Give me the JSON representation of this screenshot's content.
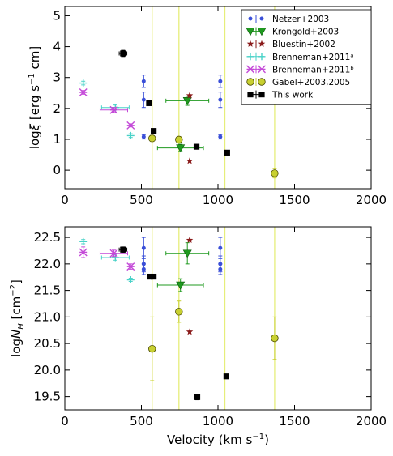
{
  "chart_data": [
    {
      "type": "scatter",
      "ylabel_parts": {
        "pre": "log",
        "symbol": "ξ",
        "post": " [erg s",
        "exp": "−1",
        "post2": " cm]"
      },
      "xlim": [
        0,
        2000
      ],
      "ylim": [
        -0.6,
        5.3
      ],
      "xticks": [
        0,
        500,
        1000,
        1500,
        2000
      ],
      "yticks": [
        0,
        1,
        2,
        3,
        4,
        5
      ],
      "vlines": [
        570,
        745,
        1045,
        1370
      ],
      "legend": {
        "placement": "top-right"
      },
      "series": [
        {
          "name": "Netzer+2003",
          "key": "netzer",
          "color": "#3a4fd8",
          "marker": "dot",
          "points": [
            {
              "x": 515,
              "y": 2.88,
              "yerr": 0.2
            },
            {
              "x": 515,
              "y": 2.28,
              "yerr": 0.25
            },
            {
              "x": 515,
              "y": 1.08,
              "yerr": 0.07
            },
            {
              "x": 1015,
              "y": 2.88,
              "yerr": 0.2
            },
            {
              "x": 1015,
              "y": 2.28,
              "yerr": 0.25
            },
            {
              "x": 1015,
              "y": 1.08,
              "yerr": 0.07
            }
          ]
        },
        {
          "name": "Krongold+2003",
          "key": "krongold",
          "color": "#1f9a1f",
          "marker": "triangle-down",
          "points": [
            {
              "x": 800,
              "y": 2.25,
              "xerr": 140,
              "yerr": 0.15
            },
            {
              "x": 755,
              "y": 0.72,
              "xerr": 150,
              "yerr": 0.12
            }
          ]
        },
        {
          "name": "Bluestin+2002",
          "key": "bluestin",
          "color": "#8a1a1a",
          "marker": "star",
          "points": [
            {
              "x": 815,
              "y": 2.42
            },
            {
              "x": 815,
              "y": 0.3
            }
          ]
        },
        {
          "name": "Brenneman+2011ᵃ",
          "key": "brennemanA",
          "color": "#49d2c8",
          "marker": "tri-plus",
          "points": [
            {
              "x": 120,
              "y": 2.82,
              "yerr": 0.06
            },
            {
              "x": 330,
              "y": 2.03,
              "xerr": 90,
              "yerr": 0.08
            },
            {
              "x": 430,
              "y": 1.12,
              "yerr": 0.06
            }
          ]
        },
        {
          "name": "Brenneman+2011ᵇ",
          "key": "brennemanB",
          "color": "#c44ad8",
          "marker": "asterisk",
          "points": [
            {
              "x": 120,
              "y": 2.52,
              "yerr": 0.06
            },
            {
              "x": 320,
              "y": 1.95,
              "xerr": 90,
              "yerr": 0.08
            },
            {
              "x": 430,
              "y": 1.45,
              "yerr": 0.05
            }
          ]
        },
        {
          "name": "Gabel+2003,2005",
          "key": "gabel",
          "color": "#c8d030",
          "marker": "circle",
          "points": [
            {
              "x": 570,
              "y": 1.03,
              "yerr": 0.1
            },
            {
              "x": 745,
              "y": 0.99,
              "yerr": 0.1
            },
            {
              "x": 1370,
              "y": -0.1,
              "yerr": 0.15
            }
          ]
        },
        {
          "name": "This work",
          "key": "thiswork",
          "color": "#000000",
          "marker": "square",
          "points": [
            {
              "x": 380,
              "y": 3.78,
              "xerr": 25,
              "yerr": 0.1
            },
            {
              "x": 550,
              "y": 2.17
            },
            {
              "x": 580,
              "y": 1.27
            },
            {
              "x": 860,
              "y": 0.76
            },
            {
              "x": 1060,
              "y": 0.57
            }
          ]
        }
      ]
    },
    {
      "type": "scatter",
      "ylabel_parts": {
        "pre": "log",
        "symbol": "N",
        "sub": "H",
        "post": " [cm",
        "exp": "−2",
        "post2": "]"
      },
      "xlabel_parts": {
        "pre": "Velocity (km s",
        "exp": "−1",
        "post": ")"
      },
      "xlim": [
        0,
        2000
      ],
      "ylim": [
        19.25,
        22.7
      ],
      "xticks": [
        0,
        500,
        1000,
        1500,
        2000
      ],
      "yticks": [
        19.5,
        20.0,
        20.5,
        21.0,
        21.5,
        22.0,
        22.5
      ],
      "vlines": [
        570,
        745,
        1045,
        1370
      ],
      "series": [
        {
          "key": "netzer",
          "color": "#3a4fd8",
          "marker": "dot",
          "points": [
            {
              "x": 515,
              "y": 22.3,
              "yerr": 0.2
            },
            {
              "x": 515,
              "y": 22.0,
              "yerr": 0.15
            },
            {
              "x": 515,
              "y": 21.9,
              "yerr": 0.1
            },
            {
              "x": 1015,
              "y": 22.3,
              "yerr": 0.2
            },
            {
              "x": 1015,
              "y": 22.0,
              "yerr": 0.15
            },
            {
              "x": 1015,
              "y": 21.9,
              "yerr": 0.1
            }
          ]
        },
        {
          "key": "krongold",
          "color": "#1f9a1f",
          "marker": "triangle-down",
          "points": [
            {
              "x": 800,
              "y": 22.2,
              "xerr": 140,
              "yerr": 0.2
            },
            {
              "x": 755,
              "y": 21.6,
              "xerr": 150,
              "yerr": 0.12
            }
          ]
        },
        {
          "key": "bluestin",
          "color": "#8a1a1a",
          "marker": "star",
          "points": [
            {
              "x": 815,
              "y": 22.45
            },
            {
              "x": 815,
              "y": 20.72
            }
          ]
        },
        {
          "key": "brennemanA",
          "color": "#49d2c8",
          "marker": "tri-plus",
          "points": [
            {
              "x": 120,
              "y": 22.42,
              "yerr": 0.04
            },
            {
              "x": 330,
              "y": 22.12,
              "xerr": 90,
              "yerr": 0.05
            },
            {
              "x": 430,
              "y": 21.7,
              "yerr": 0.03
            }
          ]
        },
        {
          "key": "brennemanB",
          "color": "#c44ad8",
          "marker": "asterisk",
          "points": [
            {
              "x": 120,
              "y": 22.22,
              "yerr": 0.1
            },
            {
              "x": 320,
              "y": 22.2,
              "xerr": 90,
              "yerr": 0.06
            },
            {
              "x": 430,
              "y": 21.95,
              "yerr": 0.05
            }
          ]
        },
        {
          "key": "gabel",
          "color": "#c8d030",
          "marker": "circle",
          "points": [
            {
              "x": 570,
              "y": 20.4,
              "yerr": 0.6
            },
            {
              "x": 745,
              "y": 21.1,
              "yerr": 0.2
            },
            {
              "x": 1370,
              "y": 20.6,
              "yerr": 0.4
            }
          ]
        },
        {
          "key": "thiswork",
          "color": "#000000",
          "marker": "square",
          "points": [
            {
              "x": 380,
              "y": 22.27,
              "xerr": 25,
              "yerr": 0.05
            },
            {
              "x": 555,
              "y": 21.76
            },
            {
              "x": 580,
              "y": 21.76
            },
            {
              "x": 865,
              "y": 19.49,
              "yerr": 0.05
            },
            {
              "x": 1055,
              "y": 19.88
            }
          ]
        }
      ]
    }
  ]
}
